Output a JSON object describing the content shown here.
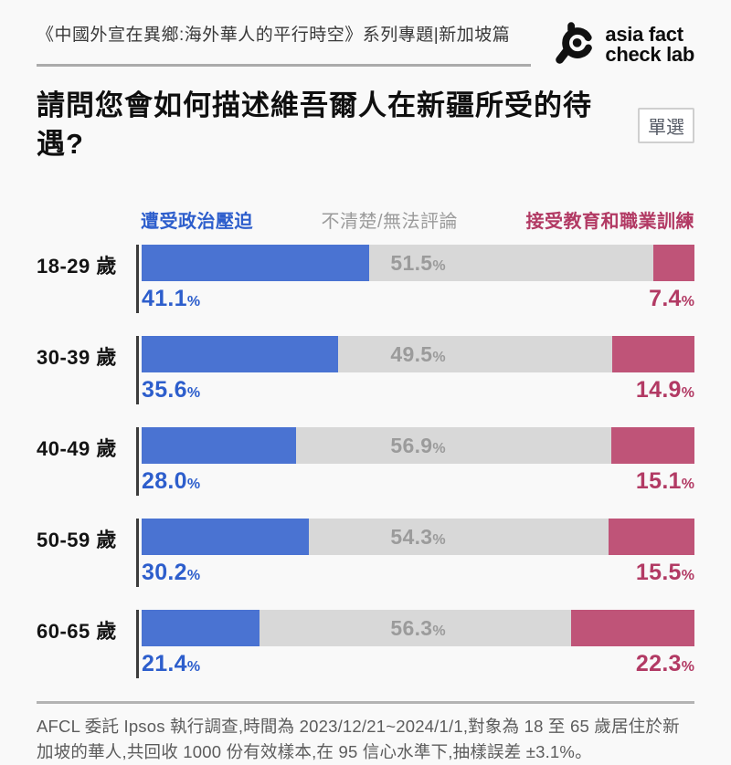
{
  "header": {
    "series_title": "《中國外宣在異鄉:海外華人的平行時空》系列專題|新加坡篇",
    "logo": {
      "line1": "asia fact",
      "line2": "check lab"
    }
  },
  "question": {
    "title": "請問您會如何描述維吾爾人在新疆所受的待遇?",
    "badge": "單選"
  },
  "chart_data": {
    "type": "bar",
    "orientation": "horizontal",
    "stacked": true,
    "unit": "%",
    "xlim": [
      0,
      100
    ],
    "legend_position": "top",
    "categories": [
      "18-29 歲",
      "30-39 歲",
      "40-49 歲",
      "50-59 歲",
      "60-65 歲"
    ],
    "series": [
      {
        "name": "遭受政治壓迫",
        "bar_color": "#4a73d2",
        "text_color": "#2d5ecc",
        "label_position": "below-left",
        "values": [
          41.1,
          35.6,
          28.0,
          30.2,
          21.4
        ],
        "labels": [
          "41.1",
          "35.6",
          "28.0",
          "30.2",
          "21.4"
        ]
      },
      {
        "name": "不清楚/無法評論",
        "bar_color": "#d8d8d8",
        "text_color": "#9b9b9b",
        "label_position": "inside-center",
        "values": [
          51.5,
          49.5,
          56.9,
          54.3,
          56.3
        ],
        "labels": [
          "51.5",
          "49.5",
          "56.9",
          "54.3",
          "56.3"
        ]
      },
      {
        "name": "接受教育和職業訓練",
        "bar_color": "#bf5478",
        "text_color": "#b23a64",
        "label_position": "below-right",
        "values": [
          7.4,
          14.9,
          15.1,
          15.5,
          22.3
        ],
        "labels": [
          "7.4",
          "14.9",
          "15.1",
          "15.5",
          "22.3"
        ]
      }
    ]
  },
  "footer": {
    "source_text": "AFCL 委託 Ipsos 執行調查,時間為 2023/12/21~2024/1/1,對象為 18 至 65 歲居住於新加坡的華人,共回收 1000 份有效樣本,在 95 信心水準下,抽樣誤差 ±3.1%。"
  },
  "colors": {
    "background": "#f9f9f9",
    "accent_blue": "#4a73d2",
    "accent_gray": "#d8d8d8",
    "accent_pink": "#bf5478",
    "axis_line": "#3c3c3c"
  }
}
